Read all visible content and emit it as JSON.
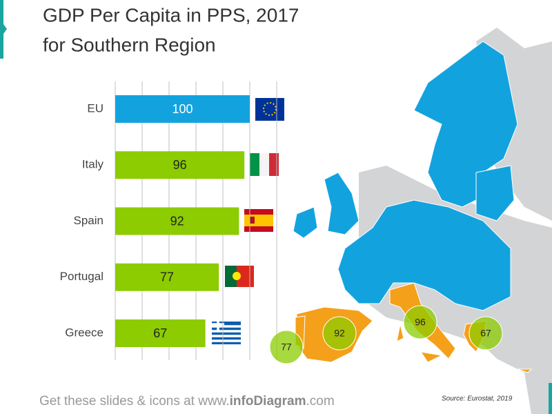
{
  "chart_data": {
    "type": "bar",
    "orientation": "horizontal",
    "title": [
      "GDP Per Capita in PPS, 2017",
      "for Southern Region"
    ],
    "categories": [
      "EU",
      "Italy",
      "Spain",
      "Portugal",
      "Greece"
    ],
    "values": [
      100,
      96,
      92,
      77,
      67
    ],
    "colors": [
      "#12a3df",
      "#8ccc00",
      "#8ccc00",
      "#8ccc00",
      "#8ccc00"
    ],
    "value_label_colors": [
      "#ffffff",
      "#222222",
      "#222222",
      "#222222",
      "#222222"
    ],
    "xlim": [
      0,
      120
    ],
    "xticks": [
      0,
      20,
      40,
      60,
      80,
      100,
      120
    ],
    "grid": true,
    "map_bubble_color": "#8ccc00",
    "source": "Source: Eurostat, 2019",
    "footer": [
      "Get these slides & icons at www.",
      "infoDiagram",
      ".com"
    ]
  }
}
